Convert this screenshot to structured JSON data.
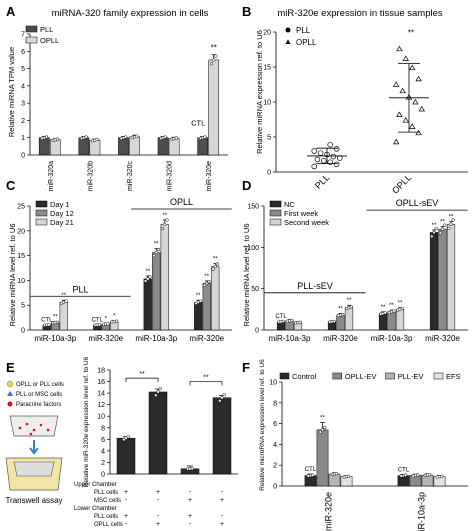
{
  "chart_data": [
    {
      "panel": "A",
      "type": "bar",
      "title": "miRNA-320 family expression in cells",
      "ylabel": "Relative miRNA TPM value",
      "ylim": [
        0,
        7
      ],
      "yticks": [
        "0",
        "1",
        "2",
        "3",
        "4",
        "5",
        "6",
        "7"
      ],
      "categories": [
        "miR-320a",
        "miR-320b",
        "miR-320c",
        "miR-320d",
        "miR-320e"
      ],
      "series": [
        {
          "name": "PLL",
          "color": "#4d4d4d",
          "values": [
            1,
            1,
            1,
            1,
            1
          ],
          "err": [
            0.08,
            0.08,
            0.08,
            0.08,
            0.08
          ]
        },
        {
          "name": "OPLL",
          "color": "#d6d6d6",
          "values": [
            0.88,
            0.86,
            1.05,
            0.95,
            5.5
          ],
          "err": [
            0.06,
            0.06,
            0.1,
            0.08,
            0.3
          ]
        }
      ],
      "annotations": {
        "sig": "**",
        "ctl": "CTL"
      }
    },
    {
      "panel": "B",
      "type": "scatter",
      "title": "miR-320e expression in tissue samples",
      "ylabel": "Relative miRNA expression ref. to U6",
      "ylim": [
        0,
        20
      ],
      "yticks": [
        "0",
        "5",
        "10",
        "15",
        "20"
      ],
      "categories": [
        "PLL",
        "OPLL"
      ],
      "series": [
        {
          "name": "PLL",
          "marker": "circle",
          "mean": 2.3,
          "sd": 1.1,
          "values": [
            0.8,
            1.1,
            1.4,
            1.6,
            1.8,
            2.0,
            2.2,
            2.5,
            2.7,
            3.0,
            3.3,
            3.9
          ]
        },
        {
          "name": "OPLL",
          "marker": "triangle",
          "mean": 10.6,
          "sd": 4.9,
          "values": [
            4.3,
            5.6,
            6.5,
            7.4,
            8.2,
            9.0,
            10.0,
            10.7,
            11.6,
            12.5,
            13.3,
            14.9,
            16.2,
            17.6
          ]
        }
      ],
      "annotations": {
        "sig": "**"
      }
    },
    {
      "panel": "C",
      "type": "bar",
      "ylabel": "Relative miRNA level ref. to U6",
      "ylim": [
        0,
        25
      ],
      "yticks": [
        "0",
        "5",
        "10",
        "15",
        "20",
        "25"
      ],
      "categories": [
        "miR-10a-3p",
        "miR-320e",
        "miR-10a-3p",
        "miR-320e"
      ],
      "groups": [
        {
          "label": "PLL",
          "span": [
            0,
            1
          ]
        },
        {
          "label": "OPLL",
          "span": [
            2,
            3
          ]
        }
      ],
      "series": [
        {
          "name": "Day 1",
          "color": "#2b2b2b",
          "values": [
            1,
            1,
            10.3,
            5.6
          ],
          "err": [
            0.1,
            0.1,
            0.6,
            0.4
          ]
        },
        {
          "name": "Day 12",
          "color": "#8a8a8a",
          "values": [
            1.5,
            1.2,
            15.6,
            9.4
          ],
          "err": [
            0.2,
            0.15,
            0.8,
            0.5
          ]
        },
        {
          "name": "Day 21",
          "color": "#d6d6d6",
          "values": [
            5.6,
            1.7,
            21.3,
            12.8
          ],
          "err": [
            0.4,
            0.2,
            0.9,
            0.6
          ]
        }
      ],
      "annotations": {
        "labels": [
          [
            "CTL",
            "**",
            "**"
          ],
          [
            "CTL",
            "*",
            "*"
          ],
          [
            "**",
            "**",
            "**"
          ],
          [
            "**",
            "**",
            "**"
          ]
        ]
      }
    },
    {
      "panel": "D",
      "type": "bar",
      "ylabel": "Relative miRNA level ref. to U6",
      "ylim": [
        0,
        150
      ],
      "yticks": [
        "0",
        "50",
        "100",
        "150"
      ],
      "categories": [
        "miR-10a-3p",
        "miR-320e",
        "miR-10a-3p",
        "miR-320e"
      ],
      "groups": [
        {
          "label": "PLL-sEV",
          "span": [
            0,
            1
          ]
        },
        {
          "label": "OPLL-sEV",
          "span": [
            2,
            3
          ]
        }
      ],
      "series": [
        {
          "name": "NC",
          "color": "#2b2b2b",
          "values": [
            10,
            10,
            20,
            118
          ],
          "err": [
            1,
            1,
            2,
            3
          ]
        },
        {
          "name": "First week",
          "color": "#8a8a8a",
          "values": [
            11,
            18,
            22,
            122
          ],
          "err": [
            1.5,
            2,
            2,
            3
          ]
        },
        {
          "name": "Second week",
          "color": "#d6d6d6",
          "values": [
            9,
            27,
            25,
            128
          ],
          "err": [
            1,
            3,
            2,
            3
          ]
        }
      ],
      "annotations": {
        "labels": [
          [
            "CTL",
            "",
            ""
          ],
          [
            "",
            "**",
            "**"
          ],
          [
            "**",
            "**",
            "**"
          ],
          [
            "**",
            "**",
            "**"
          ]
        ]
      }
    },
    {
      "panel": "E",
      "type": "bar",
      "ylabel": "Relative miR-320e expression level ref. to U6",
      "ylim": [
        0,
        18
      ],
      "yticks": [
        "0",
        "2",
        "4",
        "6",
        "8",
        "10",
        "12",
        "14",
        "16",
        "18"
      ],
      "values": [
        6.2,
        14.2,
        0.9,
        13.2
      ],
      "err": [
        0.25,
        0.5,
        0.5,
        0.4
      ],
      "color": "#2b2b2b",
      "sig": [
        "**",
        "**"
      ],
      "table": {
        "upper_title": "Upper Chamber",
        "lower_title": "Lower Chamber",
        "rows": [
          {
            "label": "PLL cells",
            "values": [
              "+",
              "+",
              "-",
              "-"
            ]
          },
          {
            "label": "MSC cells",
            "values": [
              "-",
              "-",
              "+",
              "+"
            ]
          },
          {
            "label": "PLL cells",
            "values": [
              "+",
              "-",
              "+",
              "-"
            ]
          },
          {
            "label": "OPLL cells",
            "values": [
              "-",
              "+",
              "-",
              "+"
            ]
          }
        ]
      },
      "legend": [
        "OPLL or PLL cells",
        "PLL or MSC cells",
        "Paracrine factors"
      ],
      "caption": "Transwell assay"
    },
    {
      "panel": "F",
      "type": "bar",
      "ylabel": "Relative microRNA expression level ref. to U6",
      "ylim": [
        0,
        10
      ],
      "yticks": [
        "0",
        "2",
        "4",
        "6",
        "8",
        "10"
      ],
      "categories": [
        "miR-320e",
        "miR-10a-3p"
      ],
      "series": [
        {
          "name": "Control",
          "color": "#2b2b2b",
          "values": [
            1,
            1
          ],
          "err": [
            0.15,
            0.12
          ]
        },
        {
          "name": "OPLL-EV",
          "color": "#8a8a8a",
          "values": [
            5.4,
            1.02
          ],
          "err": [
            0.7,
            0.12
          ]
        },
        {
          "name": "PLL-EV",
          "color": "#b5b5b5",
          "values": [
            1.15,
            1.05
          ],
          "err": [
            0.12,
            0.12
          ]
        },
        {
          "name": "EFS",
          "color": "#e2e2e2",
          "values": [
            0.9,
            0.9
          ],
          "err": [
            0.1,
            0.1
          ]
        }
      ],
      "annotations": {
        "labels": [
          [
            "CTL",
            "**",
            "",
            ""
          ],
          [
            "CTL",
            "",
            "",
            ""
          ]
        ]
      }
    }
  ],
  "labels": {
    "A": "A",
    "B": "B",
    "C": "C",
    "D": "D",
    "E": "E",
    "F": "F"
  }
}
